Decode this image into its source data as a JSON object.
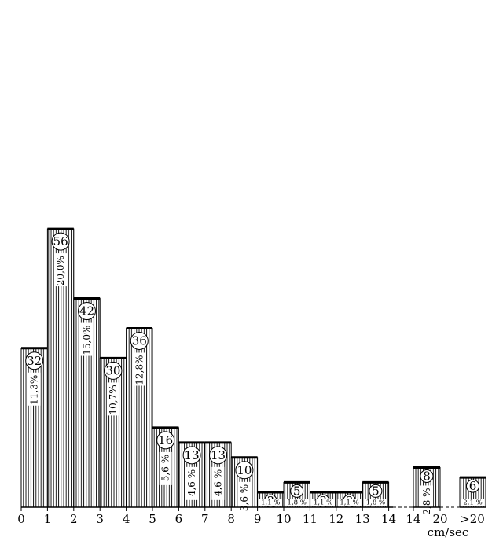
{
  "chart_data": {
    "type": "bar",
    "xlabel": "cm/sec",
    "ylabel": "",
    "ylim": [
      0,
      56
    ],
    "grid": false,
    "legend": "none",
    "bar_fill": "vertical hatching",
    "colors": {
      "ink": "#000000",
      "paper": "#ffffff"
    },
    "bins": [
      {
        "from": "0",
        "to": "1",
        "count": 32,
        "percent": "11,3%"
      },
      {
        "from": "1",
        "to": "2",
        "count": 56,
        "percent": "20,0%"
      },
      {
        "from": "2",
        "to": "3",
        "count": 42,
        "percent": "15,0%"
      },
      {
        "from": "3",
        "to": "4",
        "count": 30,
        "percent": "10,7%"
      },
      {
        "from": "4",
        "to": "5",
        "count": 36,
        "percent": "12,8%"
      },
      {
        "from": "5",
        "to": "6",
        "count": 16,
        "percent": "5,6 %"
      },
      {
        "from": "6",
        "to": "7",
        "count": 13,
        "percent": "4,6 %"
      },
      {
        "from": "7",
        "to": "8",
        "count": 13,
        "percent": "4,6 %"
      },
      {
        "from": "8",
        "to": "9",
        "count": 10,
        "percent": "3,6 %"
      },
      {
        "from": "9",
        "to": "10",
        "count": 3,
        "percent": "1,1 %"
      },
      {
        "from": "10",
        "to": "11",
        "count": 5,
        "percent": "1,8 %"
      },
      {
        "from": "11",
        "to": "12",
        "count": 3,
        "percent": "1,1 %"
      },
      {
        "from": "12",
        "to": "13",
        "count": 3,
        "percent": "1,1 %"
      },
      {
        "from": "13",
        "to": "14",
        "count": 5,
        "percent": "1,8 %"
      },
      {
        "from": "14",
        "to": "20",
        "count": 8,
        "percent": "2,8 %"
      },
      {
        "from": ">20",
        "to": "",
        "count": 6,
        "percent": "2,1 %"
      }
    ],
    "x_ticks": [
      "0",
      "1",
      "2",
      "3",
      "4",
      "5",
      "6",
      "7",
      "8",
      "9",
      "10",
      "11",
      "12",
      "13",
      "14",
      "14",
      "20",
      ">20"
    ]
  }
}
